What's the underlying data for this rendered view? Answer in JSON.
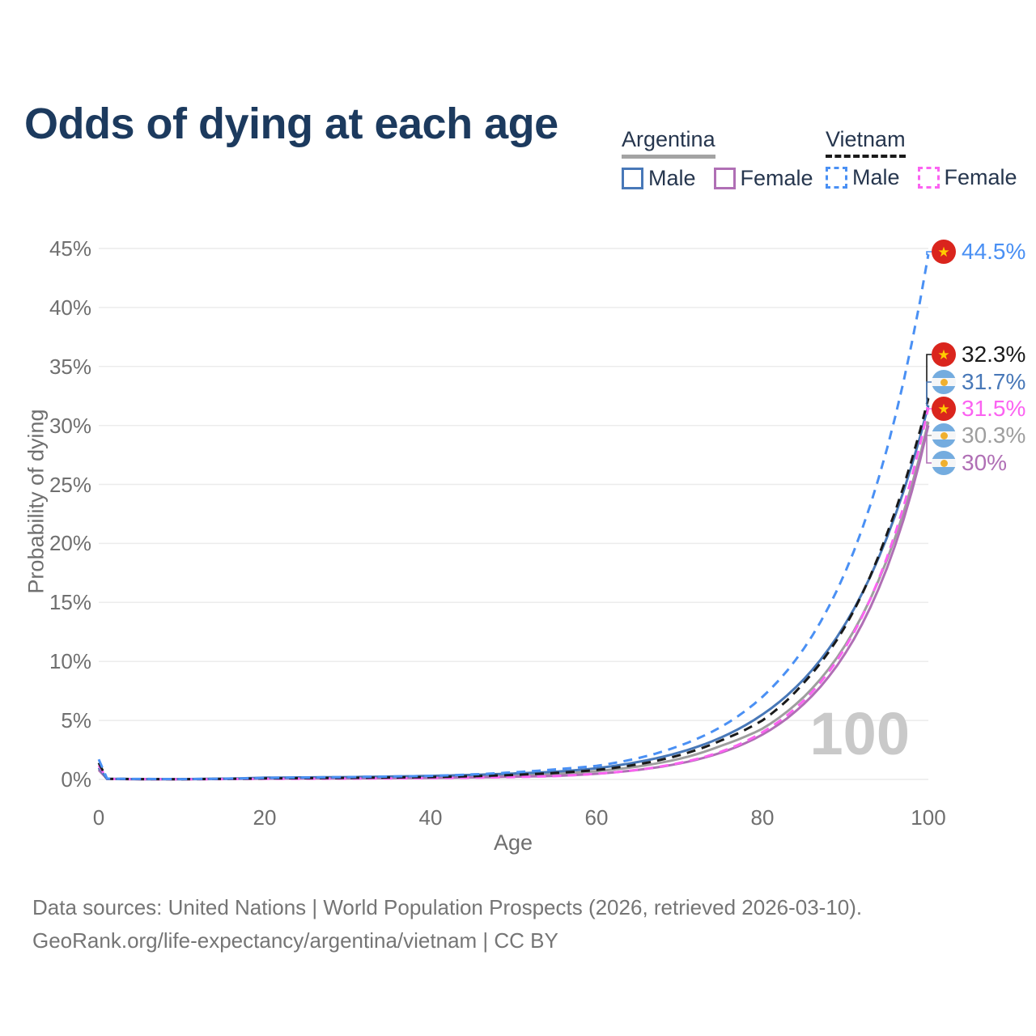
{
  "header": {
    "title": "Odds of dying at each age"
  },
  "legend": {
    "argentina": {
      "title": "Argentina",
      "male_label": "Male",
      "female_label": "Female",
      "underline_color": "#a3a3a3",
      "underline_style": "solid"
    },
    "vietnam": {
      "title": "Vietnam",
      "male_label": "Male",
      "female_label": "Female",
      "underline_color": "#1a1a1a",
      "underline_style": "dashed"
    }
  },
  "chart_data": {
    "type": "line",
    "title": "Odds of dying at each age",
    "xlabel": "Age",
    "ylabel": "Probability of dying",
    "xlim": [
      0,
      100
    ],
    "ylim": [
      0,
      45
    ],
    "grid": "horizontal",
    "x_ticks": [
      "0",
      "20",
      "40",
      "60",
      "80",
      "100"
    ],
    "x_tick_values": [
      0,
      20,
      40,
      60,
      80,
      100
    ],
    "y_ticks": [
      "0%",
      "5%",
      "10%",
      "15%",
      "20%",
      "25%",
      "30%",
      "35%",
      "40%",
      "45%"
    ],
    "y_tick_values": [
      0,
      5,
      10,
      15,
      20,
      25,
      30,
      35,
      40,
      45
    ],
    "watermark": "100",
    "ages": [
      0,
      1,
      5,
      10,
      20,
      30,
      40,
      50,
      55,
      60,
      65,
      70,
      75,
      80,
      85,
      90,
      95,
      100
    ],
    "series": [
      {
        "id": "argentina-both",
        "name": "Argentina Both sexes",
        "country": "Argentina",
        "sex": "Both sexes",
        "style": "solid",
        "color": "#9e9e9e",
        "values": [
          0.9,
          0.045,
          0.025,
          0.025,
          0.11,
          0.15,
          0.21,
          0.36,
          0.47,
          0.7,
          1.1,
          1.75,
          2.85,
          4.3,
          7.0,
          11.4,
          18.6,
          30.3
        ],
        "end_value_pct": 30.3
      },
      {
        "id": "argentina-female",
        "name": "Argentina Female",
        "country": "Argentina",
        "sex": "Female",
        "style": "solid",
        "color": "#b06fb5",
        "values": [
          0.8,
          0.04,
          0.02,
          0.02,
          0.07,
          0.09,
          0.13,
          0.23,
          0.3,
          0.48,
          0.81,
          1.35,
          2.27,
          3.8,
          6.4,
          10.7,
          17.9,
          30.0
        ],
        "end_value_pct": 30.0
      },
      {
        "id": "argentina-male",
        "name": "Argentina Male",
        "country": "Argentina",
        "sex": "Male",
        "style": "solid",
        "color": "#4878b8",
        "values": [
          1.0,
          0.05,
          0.03,
          0.03,
          0.15,
          0.2,
          0.3,
          0.5,
          0.65,
          0.95,
          1.48,
          2.29,
          3.55,
          5.5,
          8.5,
          13.2,
          20.5,
          31.7
        ],
        "end_value_pct": 31.7
      },
      {
        "id": "vietnam-female",
        "name": "Vietnam Female",
        "country": "Vietnam",
        "sex": "Female",
        "style": "dashed",
        "color": "#fb63f1",
        "values": [
          1.2,
          0.04,
          0.025,
          0.015,
          0.05,
          0.07,
          0.11,
          0.2,
          0.28,
          0.48,
          0.82,
          1.4,
          2.35,
          4.0,
          6.7,
          11.2,
          18.8,
          31.5
        ],
        "end_value_pct": 31.5
      },
      {
        "id": "vietnam-both",
        "name": "Vietnam Both sexes",
        "country": "Vietnam",
        "sex": "Both sexes",
        "style": "dashed",
        "color": "#1a1a1a",
        "values": [
          1.4,
          0.05,
          0.03,
          0.022,
          0.09,
          0.13,
          0.2,
          0.38,
          0.55,
          0.8,
          1.28,
          2.05,
          3.3,
          5.0,
          8.2,
          13.0,
          20.8,
          32.3
        ],
        "end_value_pct": 32.3
      },
      {
        "id": "vietnam-male",
        "name": "Vietnam Male",
        "country": "Vietnam",
        "sex": "Male",
        "style": "dashed",
        "color": "#4a90f4",
        "values": [
          1.7,
          0.06,
          0.04,
          0.03,
          0.13,
          0.2,
          0.3,
          0.6,
          0.85,
          1.15,
          1.8,
          2.85,
          4.45,
          7.0,
          11.1,
          17.6,
          28.0,
          44.5
        ],
        "end_value_pct": 44.5
      }
    ]
  },
  "end_labels": [
    {
      "value": "44.5%",
      "country": "Vietnam",
      "series": "Vietnam Male",
      "color": "#4a90f4"
    },
    {
      "value": "32.3%",
      "country": "Vietnam",
      "series": "Vietnam Both sexes",
      "color": "#1a1a1a"
    },
    {
      "value": "31.7%",
      "country": "Argentina",
      "series": "Argentina Male",
      "color": "#4878b8"
    },
    {
      "value": "31.5%",
      "country": "Vietnam",
      "series": "Vietnam Female",
      "color": "#fb63f1"
    },
    {
      "value": "30.3%",
      "country": "Argentina",
      "series": "Argentina Both sexes",
      "color": "#9e9e9e"
    },
    {
      "value": "30%",
      "country": "Argentina",
      "series": "Argentina Female",
      "color": "#b06fb5"
    }
  ],
  "footer": {
    "line1": "Data sources: United Nations | World Population Prospects (2026, retrieved 2026-03-10).",
    "line2": "GeoRank.org/life-expectancy/argentina/vietnam | CC BY"
  }
}
